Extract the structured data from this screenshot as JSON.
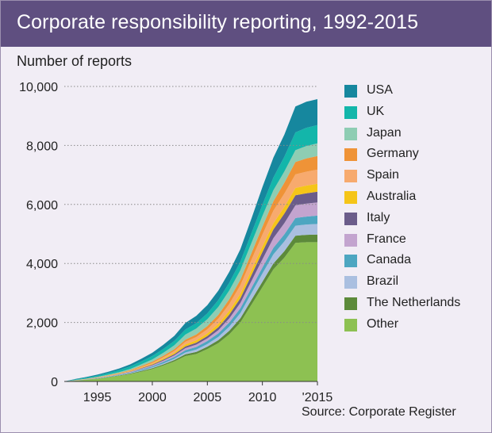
{
  "title": "Corporate responsibility reporting, 1992-2015",
  "source": "Source: Corporate Register",
  "chart_data": {
    "type": "area",
    "stacked": true,
    "ylabel": "Number of reports",
    "xlabel": "",
    "ylim": [
      0,
      10000
    ],
    "xlim": [
      1992,
      2015
    ],
    "y_ticks": [
      {
        "value": 0,
        "label": "0"
      },
      {
        "value": 2000,
        "label": "2,000"
      },
      {
        "value": 4000,
        "label": "4,000"
      },
      {
        "value": 6000,
        "label": "6,000"
      },
      {
        "value": 8000,
        "label": "8,000"
      },
      {
        "value": 10000,
        "label": "10,000"
      }
    ],
    "x_ticks": [
      {
        "value": 1995,
        "label": "1995"
      },
      {
        "value": 2000,
        "label": "2000"
      },
      {
        "value": 2005,
        "label": "2005"
      },
      {
        "value": 2010,
        "label": "2010"
      },
      {
        "value": 2015,
        "label": "'2015"
      }
    ],
    "x": [
      1992,
      1993,
      1994,
      1995,
      1996,
      1997,
      1998,
      1999,
      2000,
      2001,
      2002,
      2003,
      2004,
      2005,
      2006,
      2007,
      2008,
      2009,
      2010,
      2011,
      2012,
      2013,
      2014,
      2015
    ],
    "series": [
      {
        "name": "Other",
        "color": "#8dc152",
        "values": [
          0,
          25,
          55,
          90,
          140,
          190,
          250,
          330,
          420,
          540,
          680,
          860,
          930,
          1100,
          1300,
          1600,
          2000,
          2600,
          3200,
          3800,
          4200,
          4700,
          4720,
          4720
        ]
      },
      {
        "name": "The Netherlands",
        "color": "#5c8a3a",
        "values": [
          0,
          3,
          5,
          8,
          10,
          14,
          18,
          25,
          30,
          38,
          45,
          60,
          70,
          80,
          100,
          120,
          140,
          160,
          180,
          200,
          220,
          240,
          250,
          260
        ]
      },
      {
        "name": "Brazil",
        "color": "#aabfe0",
        "values": [
          0,
          2,
          3,
          5,
          7,
          10,
          14,
          20,
          25,
          35,
          45,
          60,
          80,
          90,
          110,
          140,
          180,
          230,
          280,
          310,
          330,
          340,
          350,
          360
        ]
      },
      {
        "name": "Canada",
        "color": "#4da6c1",
        "values": [
          0,
          3,
          5,
          8,
          12,
          16,
          22,
          30,
          38,
          50,
          60,
          80,
          90,
          100,
          120,
          140,
          160,
          180,
          200,
          220,
          240,
          260,
          270,
          280
        ]
      },
      {
        "name": "France",
        "color": "#c3a4cf",
        "values": [
          0,
          2,
          4,
          6,
          10,
          14,
          20,
          28,
          35,
          45,
          55,
          70,
          80,
          90,
          110,
          140,
          180,
          230,
          280,
          330,
          380,
          430,
          440,
          450
        ]
      },
      {
        "name": "Italy",
        "color": "#6b5c8a",
        "values": [
          0,
          1,
          2,
          3,
          5,
          8,
          12,
          18,
          24,
          30,
          40,
          55,
          65,
          80,
          100,
          130,
          160,
          200,
          250,
          290,
          320,
          340,
          350,
          360
        ]
      },
      {
        "name": "Australia",
        "color": "#f5c518",
        "values": [
          0,
          2,
          3,
          5,
          7,
          10,
          14,
          20,
          28,
          38,
          50,
          70,
          80,
          90,
          110,
          130,
          150,
          170,
          190,
          210,
          230,
          250,
          260,
          270
        ]
      },
      {
        "name": "Spain",
        "color": "#f7aa6e",
        "values": [
          0,
          1,
          2,
          3,
          5,
          8,
          12,
          20,
          30,
          45,
          60,
          90,
          110,
          140,
          180,
          230,
          290,
          350,
          400,
          430,
          450,
          460,
          470,
          480
        ]
      },
      {
        "name": "Germany",
        "color": "#ef9337",
        "values": [
          0,
          5,
          8,
          12,
          16,
          20,
          26,
          34,
          42,
          50,
          60,
          75,
          90,
          110,
          130,
          160,
          190,
          230,
          270,
          320,
          370,
          420,
          450,
          460
        ]
      },
      {
        "name": "Japan",
        "color": "#8ecdb3",
        "values": [
          0,
          4,
          8,
          12,
          18,
          26,
          38,
          55,
          75,
          100,
          130,
          170,
          200,
          230,
          270,
          300,
          320,
          340,
          360,
          370,
          380,
          400,
          420,
          430
        ]
      },
      {
        "name": "UK",
        "color": "#13b6aa",
        "values": [
          0,
          20,
          30,
          45,
          55,
          70,
          85,
          100,
          115,
          130,
          150,
          170,
          180,
          200,
          230,
          260,
          290,
          330,
          380,
          430,
          500,
          600,
          620,
          620
        ]
      },
      {
        "name": "USA",
        "color": "#16879e",
        "values": [
          0,
          15,
          25,
          35,
          45,
          55,
          70,
          90,
          110,
          140,
          170,
          220,
          250,
          280,
          320,
          370,
          420,
          500,
          600,
          680,
          750,
          880,
          880,
          880
        ]
      }
    ]
  }
}
